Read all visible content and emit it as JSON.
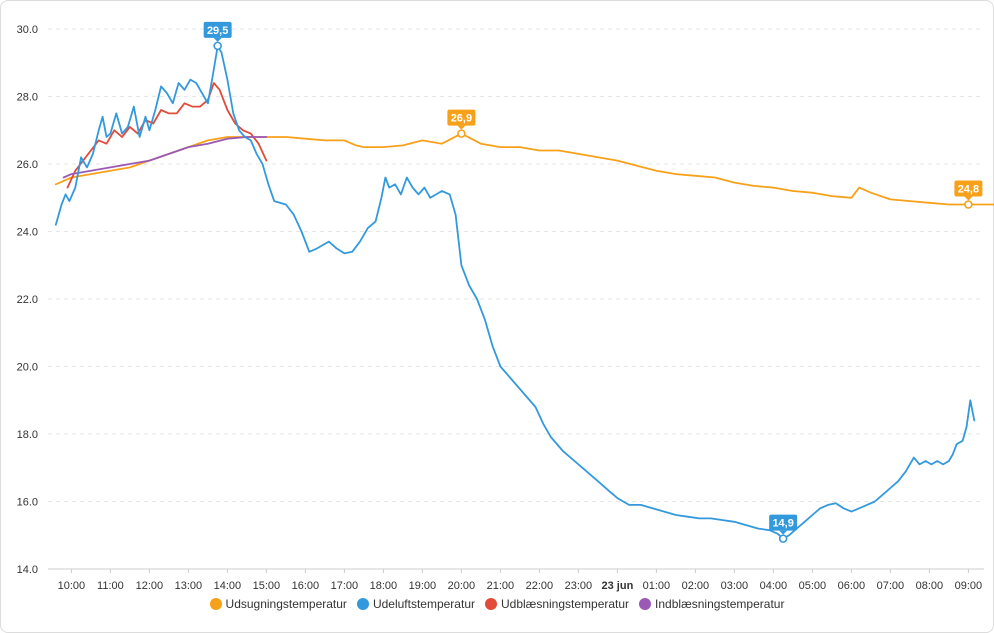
{
  "chart_data": {
    "type": "line",
    "y_ticks": [
      "30.0",
      "28.0",
      "26.0",
      "24.0",
      "22.0",
      "20.0",
      "18.0",
      "16.0",
      "14.0"
    ],
    "ylim": [
      14,
      30
    ],
    "x_ticks": [
      "10:00",
      "11:00",
      "12:00",
      "13:00",
      "14:00",
      "15:00",
      "16:00",
      "17:00",
      "18:00",
      "19:00",
      "20:00",
      "21:00",
      "22:00",
      "23:00",
      "23 jun",
      "01:00",
      "02:00",
      "03:00",
      "04:00",
      "05:00",
      "06:00",
      "07:00",
      "08:00",
      "09:00"
    ],
    "grid": true,
    "legend_position": "bottom",
    "series": [
      {
        "name": "Udsugningstemperatur",
        "color": "#f7a11a",
        "points": [
          [
            9.6,
            25.4
          ],
          [
            9.8,
            25.5
          ],
          [
            10.0,
            25.6
          ],
          [
            10.5,
            25.7
          ],
          [
            11.0,
            25.8
          ],
          [
            11.5,
            25.9
          ],
          [
            12.0,
            26.1
          ],
          [
            12.5,
            26.3
          ],
          [
            13.0,
            26.5
          ],
          [
            13.5,
            26.7
          ],
          [
            14.0,
            26.8
          ],
          [
            14.5,
            26.8
          ],
          [
            15.0,
            26.8
          ],
          [
            15.5,
            26.8
          ],
          [
            16.0,
            26.75
          ],
          [
            16.5,
            26.7
          ],
          [
            17.0,
            26.7
          ],
          [
            17.3,
            26.55
          ],
          [
            17.5,
            26.5
          ],
          [
            18.0,
            26.5
          ],
          [
            18.5,
            26.55
          ],
          [
            19.0,
            26.7
          ],
          [
            19.5,
            26.6
          ],
          [
            20.0,
            26.9
          ],
          [
            20.5,
            26.6
          ],
          [
            21.0,
            26.5
          ],
          [
            21.5,
            26.5
          ],
          [
            22.0,
            26.4
          ],
          [
            22.5,
            26.4
          ],
          [
            23.0,
            26.3
          ],
          [
            23.5,
            26.2
          ],
          [
            24.0,
            26.1
          ],
          [
            24.5,
            25.95
          ],
          [
            25.0,
            25.8
          ],
          [
            25.5,
            25.7
          ],
          [
            26.0,
            25.65
          ],
          [
            26.5,
            25.6
          ],
          [
            27.0,
            25.45
          ],
          [
            27.5,
            25.35
          ],
          [
            28.0,
            25.3
          ],
          [
            28.5,
            25.2
          ],
          [
            29.0,
            25.15
          ],
          [
            29.5,
            25.05
          ],
          [
            30.0,
            25.0
          ],
          [
            30.2,
            25.3
          ],
          [
            30.5,
            25.15
          ],
          [
            31.0,
            24.95
          ],
          [
            31.5,
            24.9
          ],
          [
            32.0,
            24.85
          ],
          [
            32.5,
            24.8
          ],
          [
            33.0,
            24.8
          ],
          [
            33.5,
            24.8
          ],
          [
            33.8,
            24.8
          ]
        ]
      },
      {
        "name": "Udeluftstemperatur",
        "color": "#3399dd",
        "points": [
          [
            9.6,
            24.2
          ],
          [
            9.75,
            24.8
          ],
          [
            9.85,
            25.1
          ],
          [
            9.95,
            24.9
          ],
          [
            10.1,
            25.3
          ],
          [
            10.25,
            26.2
          ],
          [
            10.4,
            25.9
          ],
          [
            10.55,
            26.3
          ],
          [
            10.7,
            27.0
          ],
          [
            10.8,
            27.4
          ],
          [
            10.9,
            26.8
          ],
          [
            11.0,
            26.9
          ],
          [
            11.15,
            27.5
          ],
          [
            11.3,
            26.9
          ],
          [
            11.45,
            27.1
          ],
          [
            11.6,
            27.7
          ],
          [
            11.75,
            26.8
          ],
          [
            11.9,
            27.4
          ],
          [
            12.0,
            27.0
          ],
          [
            12.15,
            27.6
          ],
          [
            12.3,
            28.3
          ],
          [
            12.45,
            28.1
          ],
          [
            12.6,
            27.8
          ],
          [
            12.75,
            28.4
          ],
          [
            12.9,
            28.2
          ],
          [
            13.05,
            28.5
          ],
          [
            13.2,
            28.4
          ],
          [
            13.35,
            28.1
          ],
          [
            13.5,
            27.8
          ],
          [
            13.65,
            28.8
          ],
          [
            13.75,
            29.5
          ],
          [
            13.85,
            29.3
          ],
          [
            14.0,
            28.5
          ],
          [
            14.15,
            27.5
          ],
          [
            14.3,
            27.0
          ],
          [
            14.45,
            26.8
          ],
          [
            14.6,
            26.7
          ],
          [
            14.75,
            26.3
          ],
          [
            14.9,
            26.0
          ],
          [
            15.05,
            25.4
          ],
          [
            15.2,
            24.9
          ],
          [
            15.5,
            24.8
          ],
          [
            15.7,
            24.5
          ],
          [
            15.9,
            24.0
          ],
          [
            16.1,
            23.4
          ],
          [
            16.3,
            23.5
          ],
          [
            16.6,
            23.7
          ],
          [
            16.8,
            23.5
          ],
          [
            17.0,
            23.35
          ],
          [
            17.2,
            23.4
          ],
          [
            17.4,
            23.7
          ],
          [
            17.6,
            24.1
          ],
          [
            17.8,
            24.3
          ],
          [
            17.95,
            25.0
          ],
          [
            18.05,
            25.6
          ],
          [
            18.15,
            25.3
          ],
          [
            18.3,
            25.4
          ],
          [
            18.45,
            25.1
          ],
          [
            18.6,
            25.6
          ],
          [
            18.75,
            25.3
          ],
          [
            18.9,
            25.1
          ],
          [
            19.05,
            25.3
          ],
          [
            19.2,
            25.0
          ],
          [
            19.35,
            25.1
          ],
          [
            19.5,
            25.2
          ],
          [
            19.7,
            25.1
          ],
          [
            19.85,
            24.5
          ],
          [
            20.0,
            23.0
          ],
          [
            20.2,
            22.4
          ],
          [
            20.4,
            22.0
          ],
          [
            20.6,
            21.4
          ],
          [
            20.8,
            20.6
          ],
          [
            21.0,
            20.0
          ],
          [
            21.3,
            19.6
          ],
          [
            21.6,
            19.2
          ],
          [
            21.9,
            18.8
          ],
          [
            22.1,
            18.3
          ],
          [
            22.3,
            17.9
          ],
          [
            22.6,
            17.5
          ],
          [
            22.9,
            17.2
          ],
          [
            23.2,
            16.9
          ],
          [
            23.5,
            16.6
          ],
          [
            23.8,
            16.3
          ],
          [
            24.0,
            16.1
          ],
          [
            24.3,
            15.9
          ],
          [
            24.6,
            15.9
          ],
          [
            24.9,
            15.8
          ],
          [
            25.2,
            15.7
          ],
          [
            25.5,
            15.6
          ],
          [
            25.8,
            15.55
          ],
          [
            26.1,
            15.5
          ],
          [
            26.4,
            15.5
          ],
          [
            26.7,
            15.45
          ],
          [
            27.0,
            15.4
          ],
          [
            27.3,
            15.3
          ],
          [
            27.6,
            15.2
          ],
          [
            27.9,
            15.15
          ],
          [
            28.1,
            15.05
          ],
          [
            28.25,
            14.9
          ],
          [
            28.4,
            15.0
          ],
          [
            28.6,
            15.2
          ],
          [
            28.8,
            15.4
          ],
          [
            29.0,
            15.6
          ],
          [
            29.2,
            15.8
          ],
          [
            29.4,
            15.9
          ],
          [
            29.6,
            15.95
          ],
          [
            29.8,
            15.8
          ],
          [
            30.0,
            15.7
          ],
          [
            30.2,
            15.8
          ],
          [
            30.4,
            15.9
          ],
          [
            30.6,
            16.0
          ],
          [
            30.8,
            16.2
          ],
          [
            31.0,
            16.4
          ],
          [
            31.2,
            16.6
          ],
          [
            31.4,
            16.9
          ],
          [
            31.6,
            17.3
          ],
          [
            31.75,
            17.1
          ],
          [
            31.9,
            17.2
          ],
          [
            32.05,
            17.1
          ],
          [
            32.2,
            17.2
          ],
          [
            32.35,
            17.1
          ],
          [
            32.5,
            17.2
          ],
          [
            32.6,
            17.4
          ],
          [
            32.7,
            17.7
          ],
          [
            32.85,
            17.8
          ],
          [
            32.95,
            18.2
          ],
          [
            33.05,
            19.0
          ],
          [
            33.15,
            18.4
          ]
        ]
      },
      {
        "name": "Udblæsningstemperatur",
        "color": "#e04b3a",
        "points": [
          [
            9.9,
            25.3
          ],
          [
            10.1,
            25.8
          ],
          [
            10.3,
            26.1
          ],
          [
            10.5,
            26.4
          ],
          [
            10.7,
            26.7
          ],
          [
            10.9,
            26.6
          ],
          [
            11.1,
            27.0
          ],
          [
            11.3,
            26.8
          ],
          [
            11.5,
            27.1
          ],
          [
            11.7,
            26.9
          ],
          [
            11.9,
            27.3
          ],
          [
            12.1,
            27.2
          ],
          [
            12.3,
            27.6
          ],
          [
            12.5,
            27.5
          ],
          [
            12.7,
            27.5
          ],
          [
            12.9,
            27.8
          ],
          [
            13.1,
            27.7
          ],
          [
            13.3,
            27.7
          ],
          [
            13.5,
            27.9
          ],
          [
            13.65,
            28.4
          ],
          [
            13.8,
            28.2
          ],
          [
            14.0,
            27.6
          ],
          [
            14.2,
            27.2
          ],
          [
            14.4,
            27.0
          ],
          [
            14.6,
            26.9
          ],
          [
            14.8,
            26.6
          ],
          [
            15.0,
            26.1
          ]
        ]
      },
      {
        "name": "Indblæsningstemperatur",
        "color": "#9b59b6",
        "points": [
          [
            9.8,
            25.6
          ],
          [
            10.0,
            25.7
          ],
          [
            10.5,
            25.8
          ],
          [
            11.0,
            25.9
          ],
          [
            11.5,
            26.0
          ],
          [
            12.0,
            26.1
          ],
          [
            12.5,
            26.3
          ],
          [
            13.0,
            26.5
          ],
          [
            13.5,
            26.6
          ],
          [
            14.0,
            26.75
          ],
          [
            14.5,
            26.8
          ],
          [
            15.0,
            26.8
          ]
        ]
      }
    ],
    "annotations": [
      {
        "series": 1,
        "x": 13.75,
        "y": 29.5,
        "text": "29,5"
      },
      {
        "series": 0,
        "x": 20.0,
        "y": 26.9,
        "text": "26,9"
      },
      {
        "series": 1,
        "x": 28.25,
        "y": 14.9,
        "text": "14,9"
      },
      {
        "series": 0,
        "x": 33.0,
        "y": 24.8,
        "text": "24,8"
      }
    ]
  }
}
